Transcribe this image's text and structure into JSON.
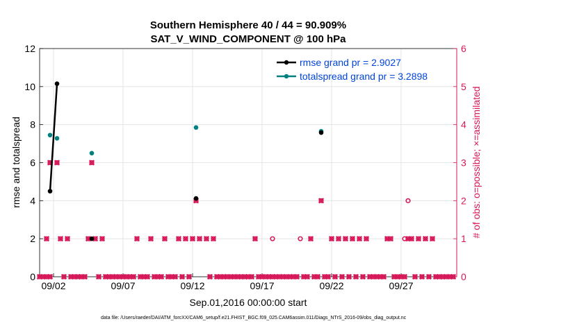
{
  "chart_data": {
    "type": "line",
    "title": "Southern Hemisphere 40 / 44 = 90.909%",
    "subtitle": "SAT_V_WIND_COMPONENT @ 100 hPa",
    "xlabel": "Sep.01,2016 00:00:00 start",
    "ylabel_left": "rmse and totalspread",
    "ylabel_right": "# of obs: o=possible; ×=assimilated",
    "ylim_left": [
      0,
      12
    ],
    "ylim_right": [
      0,
      6
    ],
    "xlim": [
      0,
      30
    ],
    "x_tick_values": [
      1,
      6,
      11,
      16,
      21,
      26
    ],
    "x_tick_labels": [
      "09/02",
      "09/07",
      "09/12",
      "09/17",
      "09/22",
      "09/27"
    ],
    "y_left_ticks": [
      "0",
      "2",
      "4",
      "6",
      "8",
      "10",
      "12"
    ],
    "y_right_ticks": [
      "0",
      "1",
      "2",
      "3",
      "4",
      "5",
      "6"
    ],
    "grid": true,
    "legend_position": "top-right",
    "legend": [
      "rmse grand pr = 2.9027",
      "totalspread grand pr = 3.2898"
    ],
    "colors": {
      "rmse": "#000000",
      "spread": "#00807f",
      "obs": "#d6185a",
      "axis_right": "#d6185a",
      "legend_text": "#0044dd"
    },
    "rmse": [
      [
        0.75,
        4.5
      ],
      [
        1.25,
        10.15
      ],
      [
        3.75,
        2.0
      ],
      [
        11.25,
        4.12
      ],
      [
        20.25,
        7.58
      ]
    ],
    "rmse_lines": [
      [
        [
          0.75,
          4.5
        ],
        [
          1.25,
          10.15
        ]
      ]
    ],
    "totalspread": [
      [
        0.75,
        7.45
      ],
      [
        1.25,
        7.28
      ],
      [
        3.75,
        6.5
      ],
      [
        11.25,
        7.85
      ],
      [
        20.25,
        7.65
      ]
    ],
    "obs_assimilated": [
      [
        0.75,
        3
      ],
      [
        1.25,
        3
      ],
      [
        3.75,
        3
      ],
      [
        11.25,
        2
      ],
      [
        20.25,
        2
      ]
    ],
    "obs_possible": [
      [
        16.75,
        1
      ],
      [
        18.75,
        1
      ],
      [
        26.5,
        2
      ],
      [
        26.25,
        1
      ]
    ],
    "obs_ones": [
      0.5,
      1.5,
      2.0,
      3.5,
      4.0,
      4.5,
      7.0,
      8.0,
      9.0,
      10.0,
      10.5,
      11.0,
      11.5,
      12.0,
      12.5,
      15.5,
      19.5,
      21.0,
      21.5,
      22.0,
      22.5,
      23.0,
      23.5,
      25.0,
      25.25,
      26.5,
      26.75,
      27.25,
      27.75,
      28.25
    ],
    "obs_zeros": [
      0.0,
      0.25,
      0.5,
      0.75,
      1.75,
      2.25,
      2.5,
      2.75,
      3.0,
      3.25,
      4.25,
      4.75,
      5.0,
      5.25,
      5.5,
      5.75,
      6.0,
      6.25,
      6.5,
      6.75,
      7.25,
      7.5,
      7.75,
      8.25,
      8.5,
      8.75,
      9.25,
      9.5,
      9.75,
      10.25,
      10.75,
      12.25,
      12.75,
      13.0,
      13.25,
      13.5,
      13.75,
      14.0,
      14.25,
      14.5,
      14.75,
      15.0,
      15.25,
      15.75,
      16.0,
      16.25,
      16.5,
      16.75,
      17.0,
      17.25,
      17.5,
      17.75,
      18.0,
      18.25,
      18.5,
      19.0,
      19.25,
      19.75,
      20.0,
      20.5,
      20.75,
      21.25,
      21.75,
      22.25,
      22.75,
      23.25,
      23.75,
      24.0,
      24.25,
      24.5,
      24.75,
      25.5,
      25.75,
      26.0,
      26.25,
      27.0,
      27.5,
      28.0,
      28.5,
      28.75,
      29.0,
      29.25,
      29.5,
      29.75
    ]
  },
  "footer": "data file: /Users/raeder/DAI/ATM_forcXX/CAM6_setup/f.e21.FHIST_BGC.f09_025.CAM6assim.011/Diags_NTrS_2016-09/obs_diag_output.nc"
}
